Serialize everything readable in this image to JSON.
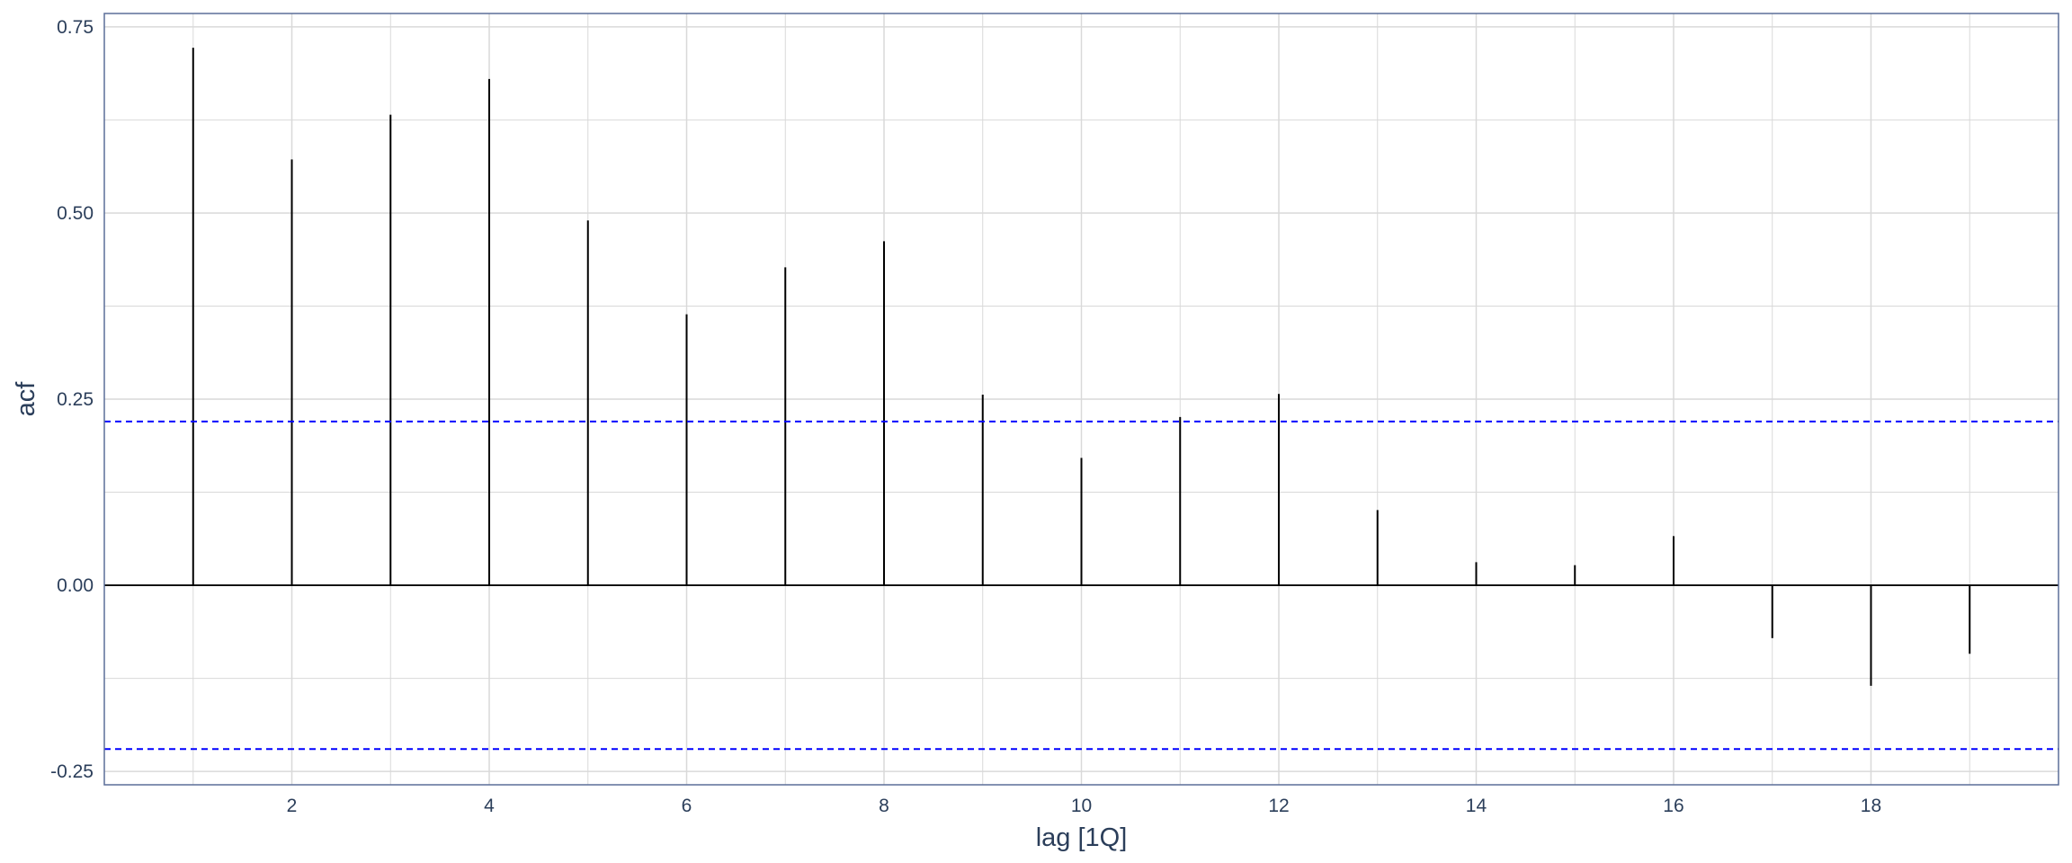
{
  "chart_data": {
    "type": "bar",
    "subtype": "acf-stem",
    "title": "",
    "xlabel": "lag [1Q]",
    "ylabel": "acf",
    "x": [
      1,
      2,
      3,
      4,
      5,
      6,
      7,
      8,
      9,
      10,
      11,
      12,
      13,
      14,
      15,
      16,
      17,
      18,
      19
    ],
    "values": [
      0.722,
      0.572,
      0.632,
      0.68,
      0.49,
      0.364,
      0.427,
      0.462,
      0.256,
      0.171,
      0.226,
      0.257,
      0.101,
      0.031,
      0.027,
      0.066,
      -0.071,
      -0.135,
      -0.092
    ],
    "xlim": [
      0.1,
      19.9
    ],
    "ylim": [
      -0.268,
      0.768
    ],
    "x_ticks": [
      2,
      4,
      6,
      8,
      10,
      12,
      14,
      16,
      18
    ],
    "x_tick_labels": [
      "2",
      "4",
      "6",
      "8",
      "10",
      "12",
      "14",
      "16",
      "18"
    ],
    "y_ticks": [
      -0.25,
      0.0,
      0.25,
      0.5,
      0.75
    ],
    "y_tick_labels": [
      "-0.25",
      "0.00",
      "0.25",
      "0.50",
      "0.75"
    ],
    "confidence_band": [
      -0.22,
      0.22
    ],
    "grid": true,
    "colors": {
      "stem": "#000000",
      "confidence_line": "#0000ff",
      "grid": "#d9d9d9",
      "panel_border": "#5b6e99",
      "text": "#2b3e5a"
    }
  }
}
